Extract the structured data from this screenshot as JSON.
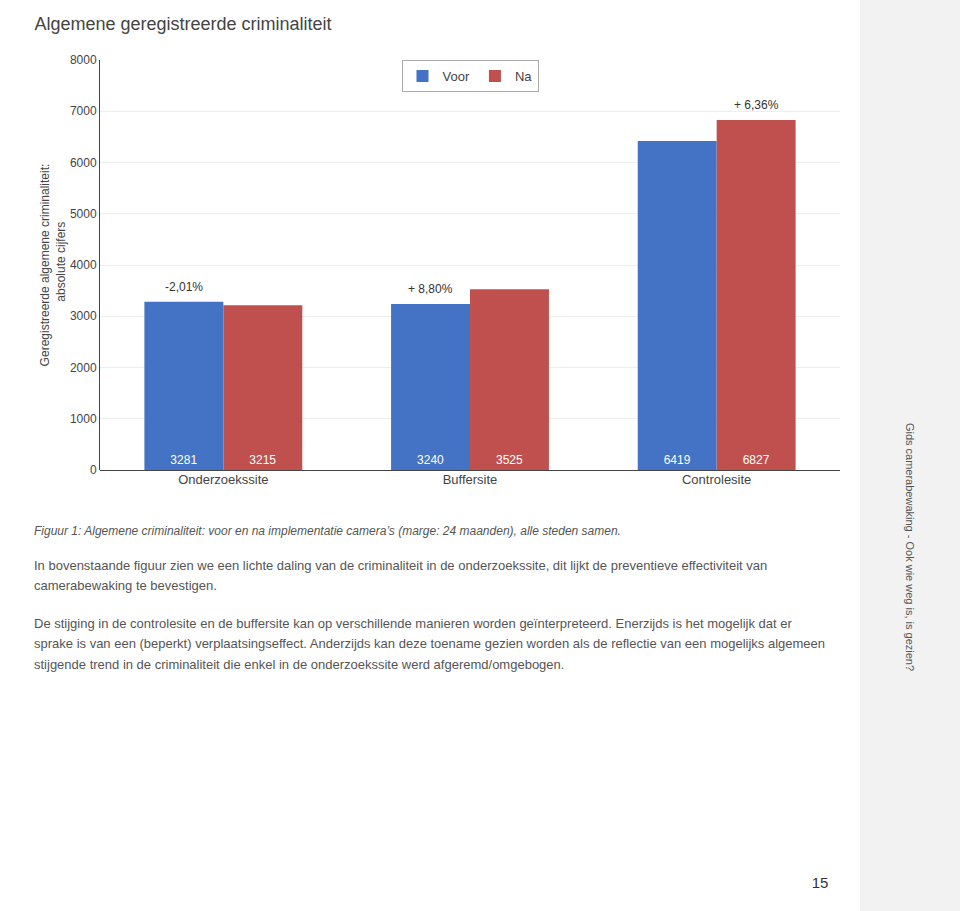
{
  "chart_data": {
    "type": "bar",
    "title": "Algemene geregistreerde criminaliteit",
    "ylabel": "Geregistreerde algemene criminaliteit:\n  absolute cijfers",
    "categories": [
      "Onderzoekssite",
      "Buffersite",
      "Controlesite"
    ],
    "series": [
      {
        "name": "Voor",
        "color": "#4472C4",
        "values": [
          3281,
          3240,
          6419
        ]
      },
      {
        "name": "Na",
        "color": "#C0504D",
        "values": [
          3215,
          3525,
          6827
        ]
      }
    ],
    "ylim": [
      0,
      8000
    ],
    "yticks": [
      0,
      1000,
      2000,
      3000,
      4000,
      5000,
      6000,
      7000,
      8000
    ],
    "grid": true,
    "legend": "upper center",
    "data_labels": true,
    "annotations": [
      {
        "text": "-2,01%",
        "category": "Onderzoekssite",
        "series": "Voor"
      },
      {
        "text": "+ 8,80%",
        "category": "Buffersite",
        "series": "Voor"
      },
      {
        "text": "+ 6,36%",
        "category": "Controlesite",
        "series": "Na"
      }
    ],
    "caption": "Figuur 1: Algemene criminaliteit: voor en na implementatie camera’s (marge: 24 maanden), alle steden samen.",
    "text": [
      "In bovenstaande figuur zien we een lichte daling van de criminaliteit in de onderzoekssite, dit lijkt de preventieve effectiviteit van camerabewaking te bevestigen.",
      "De stijging in de controlesite en de buffersite kan op verschillende manieren worden geïnterpreteerd. Enerzijds is het mogelijk dat er sprake is van een (beperkt) verplaatsingseffect. Anderzijds kan deze toename gezien worden als de reflectie van een mogelijks algemeen stijgende trend in de criminaliteit die enkel in de onderzoekssite werd afgeremd/omgebogen."
    ],
    "side_text": "Gids camerabewaking - Ook wie weg is, is gezien?",
    "page_number": "15"
  }
}
